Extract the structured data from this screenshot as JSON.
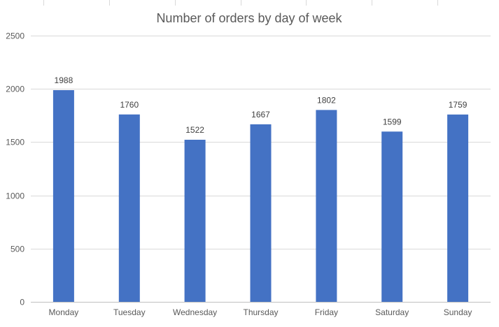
{
  "chart_data": {
    "type": "bar",
    "title": "Number of orders by day of week",
    "xlabel": "",
    "ylabel": "",
    "categories": [
      "Monday",
      "Tuesday",
      "Wednesday",
      "Thursday",
      "Friday",
      "Saturday",
      "Sunday"
    ],
    "values": [
      1988,
      1760,
      1522,
      1667,
      1802,
      1599,
      1759
    ],
    "data_labels": [
      "1988",
      "1760",
      "1522",
      "1667",
      "1802",
      "1599",
      "1759"
    ],
    "ylim": [
      0,
      2500
    ],
    "yticks": [
      0,
      500,
      1000,
      1500,
      2000,
      2500
    ],
    "ytick_labels": [
      "0",
      "500",
      "1000",
      "1500",
      "2000",
      "2500"
    ],
    "grid": true,
    "legend": "none",
    "colors": {
      "bar": "#4472c4",
      "gridline": "#d9d9d9",
      "text": "#595959"
    }
  }
}
